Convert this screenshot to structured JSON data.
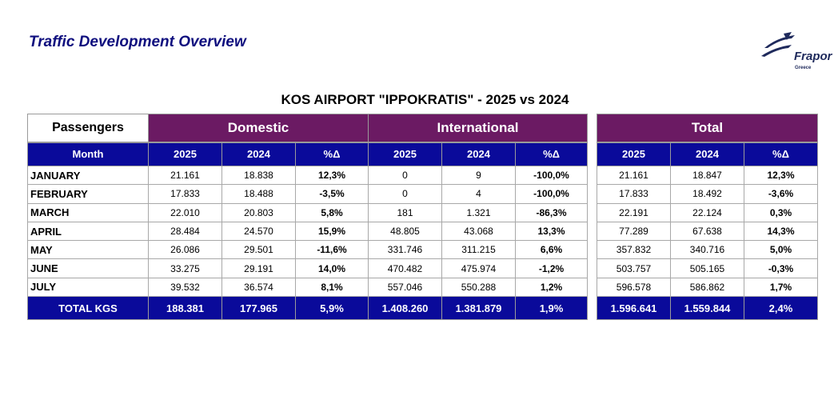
{
  "page_title": "Traffic Development Overview",
  "logo": {
    "name": "Frapor",
    "sub": "Greece"
  },
  "report_title": "KOS AIRPORT \"IPPOKRATIS\" - 2025 vs 2024",
  "headers": {
    "passengers": "Passengers",
    "domestic": "Domestic",
    "international": "International",
    "total": "Total",
    "month": "Month",
    "y2025": "2025",
    "y2024": "2024",
    "pct": "%Δ"
  },
  "rows": [
    {
      "month": "JANUARY",
      "d25": "21.161",
      "d24": "18.838",
      "dp": "12,3%",
      "i25": "0",
      "i24": "9",
      "ip": "-100,0%",
      "t25": "21.161",
      "t24": "18.847",
      "tp": "12,3%"
    },
    {
      "month": "FEBRUARY",
      "d25": "17.833",
      "d24": "18.488",
      "dp": "-3,5%",
      "i25": "0",
      "i24": "4",
      "ip": "-100,0%",
      "t25": "17.833",
      "t24": "18.492",
      "tp": "-3,6%"
    },
    {
      "month": "MARCH",
      "d25": "22.010",
      "d24": "20.803",
      "dp": "5,8%",
      "i25": "181",
      "i24": "1.321",
      "ip": "-86,3%",
      "t25": "22.191",
      "t24": "22.124",
      "tp": "0,3%"
    },
    {
      "month": "APRIL",
      "d25": "28.484",
      "d24": "24.570",
      "dp": "15,9%",
      "i25": "48.805",
      "i24": "43.068",
      "ip": "13,3%",
      "t25": "77.289",
      "t24": "67.638",
      "tp": "14,3%"
    },
    {
      "month": "MAY",
      "d25": "26.086",
      "d24": "29.501",
      "dp": "-11,6%",
      "i25": "331.746",
      "i24": "311.215",
      "ip": "6,6%",
      "t25": "357.832",
      "t24": "340.716",
      "tp": "5,0%"
    },
    {
      "month": "JUNE",
      "d25": "33.275",
      "d24": "29.191",
      "dp": "14,0%",
      "i25": "470.482",
      "i24": "475.974",
      "ip": "-1,2%",
      "t25": "503.757",
      "t24": "505.165",
      "tp": "-0,3%"
    },
    {
      "month": "JULY",
      "d25": "39.532",
      "d24": "36.574",
      "dp": "8,1%",
      "i25": "557.046",
      "i24": "550.288",
      "ip": "1,2%",
      "t25": "596.578",
      "t24": "586.862",
      "tp": "1,7%"
    }
  ],
  "totals": {
    "label": "TOTAL KGS",
    "d25": "188.381",
    "d24": "177.965",
    "dp": "5,9%",
    "i25": "1.408.260",
    "i24": "1.381.879",
    "ip": "1,9%",
    "t25": "1.596.641",
    "t24": "1.559.844",
    "tp": "2,4%"
  },
  "colors": {
    "purple": "#6b1a63",
    "navy": "#0a0a9a",
    "title": "#0e0e7e"
  }
}
